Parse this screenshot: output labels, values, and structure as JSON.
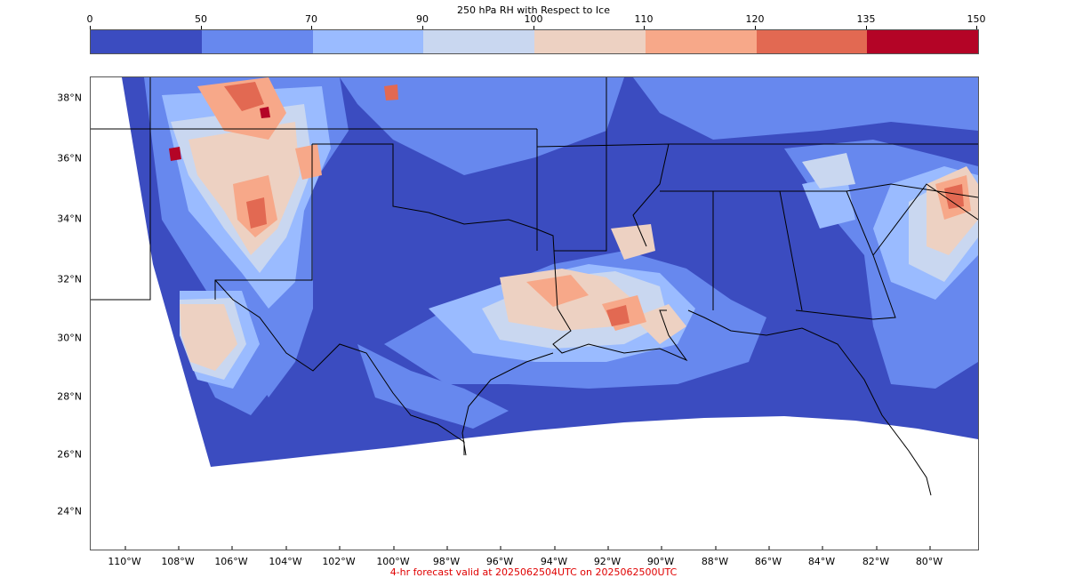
{
  "colorbar": {
    "title": "250 hPa RH with Respect to Ice",
    "ticks": [
      "0",
      "50",
      "70",
      "90",
      "100",
      "110",
      "120",
      "135",
      "150"
    ],
    "colors": [
      "#3b4cc0",
      "#6788ee",
      "#9abbff",
      "#c9d7f0",
      "#edd1c2",
      "#f7a889",
      "#e26952",
      "#b40426"
    ]
  },
  "map": {
    "lat_labels": [
      "38°N",
      "36°N",
      "34°N",
      "32°N",
      "30°N",
      "28°N",
      "26°N",
      "24°N"
    ],
    "lon_labels": [
      "110°W",
      "108°W",
      "106°W",
      "104°W",
      "102°W",
      "100°W",
      "98°W",
      "96°W",
      "94°W",
      "92°W",
      "90°W",
      "88°W",
      "86°W",
      "84°W",
      "82°W",
      "80°W"
    ]
  },
  "footer": "4-hr forecast valid at 2025062504UTC on 2025062500UTC"
}
